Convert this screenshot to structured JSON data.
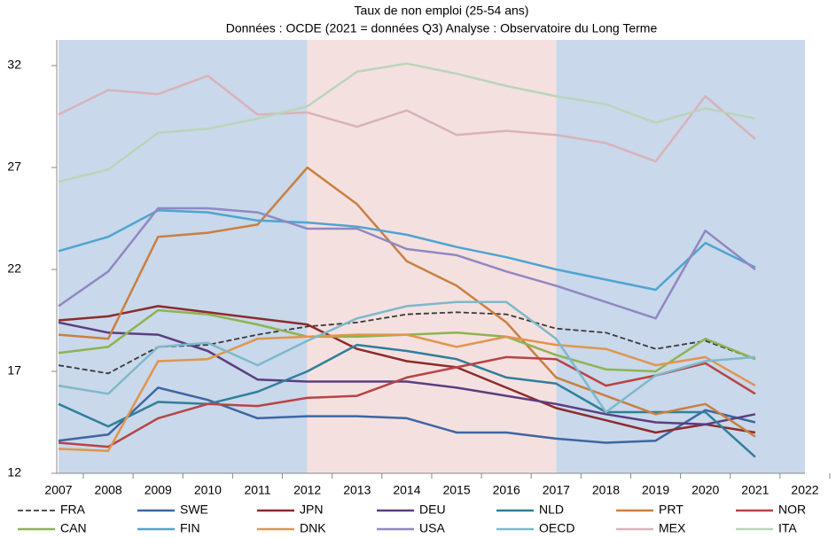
{
  "chart_data": {
    "type": "line",
    "title": "Taux de non emploi (25-54 ans)",
    "subtitle": "Données : OCDE (2021 = données Q3)  Analyse : Observatoire du Long Terme",
    "x": [
      2007,
      2008,
      2009,
      2010,
      2011,
      2012,
      2013,
      2014,
      2015,
      2016,
      2017,
      2018,
      2019,
      2020,
      2021
    ],
    "xlim": [
      2007,
      2022
    ],
    "xticks": [
      2007,
      2008,
      2009,
      2010,
      2011,
      2012,
      2013,
      2014,
      2015,
      2016,
      2017,
      2018,
      2019,
      2020,
      2021,
      2022
    ],
    "ylim": [
      12,
      32
    ],
    "yticks": [
      12,
      17,
      22,
      27,
      32
    ],
    "shaded_periods": [
      {
        "start": 2007,
        "end": 2012,
        "color": "#c9d8ea"
      },
      {
        "start": 2012,
        "end": 2017,
        "color": "#f5e0e0"
      },
      {
        "start": 2017,
        "end": 2022,
        "color": "#c9d8ea"
      }
    ],
    "series": [
      {
        "name": "FRA",
        "color": "#3a3a3a",
        "dashed": true,
        "values": [
          17.3,
          16.9,
          18.2,
          18.3,
          18.8,
          19.2,
          19.4,
          19.8,
          19.9,
          19.8,
          19.1,
          18.9,
          18.1,
          18.5,
          17.6
        ]
      },
      {
        "name": "SWE",
        "color": "#3d66a3",
        "values": [
          13.6,
          13.9,
          16.2,
          15.6,
          14.7,
          14.8,
          14.8,
          14.7,
          14.0,
          14.0,
          13.7,
          13.5,
          13.6,
          15.1,
          14.5
        ]
      },
      {
        "name": "JPN",
        "color": "#8c2b2b",
        "values": [
          19.5,
          19.7,
          20.2,
          19.9,
          19.6,
          19.3,
          18.1,
          17.5,
          17.2,
          16.2,
          15.2,
          14.6,
          14.0,
          14.4,
          14.0
        ]
      },
      {
        "name": "DEU",
        "color": "#5c3d80",
        "values": [
          19.4,
          18.9,
          18.8,
          18.0,
          16.6,
          16.5,
          16.5,
          16.5,
          16.2,
          15.8,
          15.4,
          14.9,
          14.5,
          14.4,
          14.9
        ]
      },
      {
        "name": "NLD",
        "color": "#2f7f9c",
        "values": [
          15.4,
          14.3,
          15.5,
          15.4,
          16.0,
          17.0,
          18.3,
          18.0,
          17.6,
          16.7,
          16.4,
          15.0,
          15.0,
          15.0,
          12.8
        ]
      },
      {
        "name": "PRT",
        "color": "#c9803f",
        "values": [
          18.8,
          18.6,
          23.6,
          23.8,
          24.2,
          27.0,
          25.2,
          22.4,
          21.2,
          19.4,
          16.7,
          15.8,
          14.9,
          15.4,
          13.8
        ]
      },
      {
        "name": "NOR",
        "color": "#b84444",
        "values": [
          13.5,
          13.3,
          14.7,
          15.4,
          15.3,
          15.7,
          15.8,
          16.7,
          17.2,
          17.7,
          17.6,
          16.3,
          16.8,
          17.4,
          15.9
        ]
      },
      {
        "name": "CAN",
        "color": "#8db352",
        "values": [
          17.9,
          18.2,
          20.0,
          19.8,
          19.3,
          18.7,
          18.7,
          18.8,
          18.9,
          18.7,
          17.8,
          17.1,
          17.0,
          18.6,
          17.6
        ]
      },
      {
        "name": "FIN",
        "color": "#4fa4d0",
        "values": [
          22.9,
          23.6,
          24.9,
          24.8,
          24.4,
          24.3,
          24.1,
          23.7,
          23.1,
          22.6,
          22.0,
          21.5,
          21.0,
          23.3,
          22.1
        ]
      },
      {
        "name": "DNK",
        "color": "#e0954f",
        "values": [
          13.2,
          13.1,
          17.5,
          17.6,
          18.6,
          18.7,
          18.8,
          18.8,
          18.2,
          18.7,
          18.3,
          18.1,
          17.3,
          17.7,
          16.3
        ]
      },
      {
        "name": "USA",
        "color": "#9088c2",
        "values": [
          20.2,
          21.9,
          25.0,
          25.0,
          24.8,
          24.0,
          24.0,
          23.0,
          22.7,
          21.9,
          21.2,
          20.4,
          19.6,
          23.9,
          22.0
        ]
      },
      {
        "name": "OECD",
        "color": "#7db9ca",
        "values": [
          16.3,
          15.9,
          18.2,
          18.4,
          17.3,
          18.5,
          19.6,
          20.2,
          20.4,
          20.4,
          18.6,
          15.0,
          16.8,
          17.5,
          17.7
        ]
      },
      {
        "name": "MEX",
        "color": "#d9b2ba",
        "values": [
          29.6,
          30.8,
          30.6,
          31.5,
          29.6,
          29.7,
          29.0,
          29.8,
          28.6,
          28.8,
          28.6,
          28.2,
          27.3,
          30.5,
          28.4
        ]
      },
      {
        "name": "ITA",
        "color": "#b9d5b9",
        "values": [
          26.3,
          26.9,
          28.7,
          28.9,
          29.4,
          30.0,
          31.7,
          32.1,
          31.6,
          31.0,
          30.5,
          30.1,
          29.2,
          29.9,
          29.4
        ]
      }
    ]
  }
}
